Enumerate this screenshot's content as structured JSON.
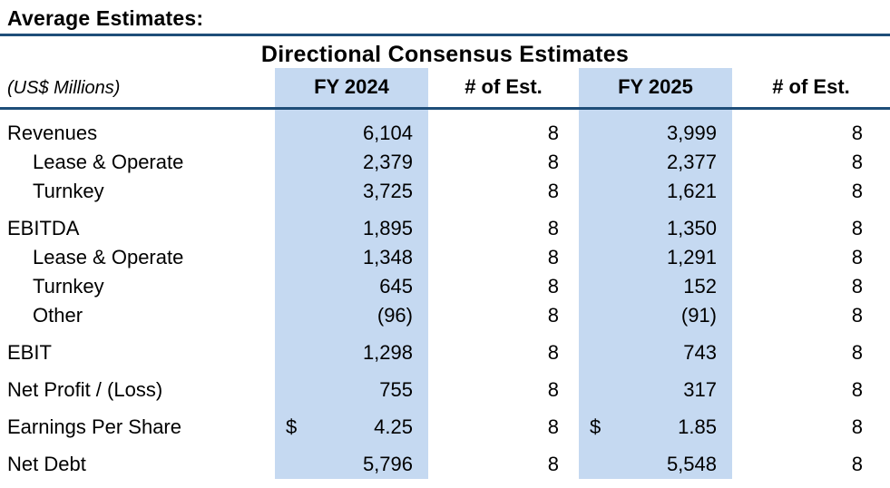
{
  "page": {
    "title": "Average Estimates:"
  },
  "table": {
    "title": "Directional Consensus Estimates",
    "unit_label": "(US$ Millions)",
    "columns": {
      "fy1": "FY 2024",
      "est1": "# of Est.",
      "fy2": "FY 2025",
      "est2": "# of Est."
    },
    "rows": [
      {
        "label": "Revenues",
        "indent": false,
        "gap": false,
        "cur1": "",
        "fy1": "6,104",
        "est1": "8",
        "cur2": "",
        "fy2": "3,999",
        "est2": "8"
      },
      {
        "label": "Lease & Operate",
        "indent": true,
        "gap": false,
        "cur1": "",
        "fy1": "2,379",
        "est1": "8",
        "cur2": "",
        "fy2": "2,377",
        "est2": "8"
      },
      {
        "label": "Turnkey",
        "indent": true,
        "gap": false,
        "cur1": "",
        "fy1": "3,725",
        "est1": "8",
        "cur2": "",
        "fy2": "1,621",
        "est2": "8"
      },
      {
        "label": "EBITDA",
        "indent": false,
        "gap": true,
        "cur1": "",
        "fy1": "1,895",
        "est1": "8",
        "cur2": "",
        "fy2": "1,350",
        "est2": "8"
      },
      {
        "label": "Lease & Operate",
        "indent": true,
        "gap": false,
        "cur1": "",
        "fy1": "1,348",
        "est1": "8",
        "cur2": "",
        "fy2": "1,291",
        "est2": "8"
      },
      {
        "label": "Turnkey",
        "indent": true,
        "gap": false,
        "cur1": "",
        "fy1": "645",
        "est1": "8",
        "cur2": "",
        "fy2": "152",
        "est2": "8"
      },
      {
        "label": "Other",
        "indent": true,
        "gap": false,
        "cur1": "",
        "fy1": "(96)",
        "est1": "8",
        "cur2": "",
        "fy2": "(91)",
        "est2": "8"
      },
      {
        "label": "EBIT",
        "indent": false,
        "gap": true,
        "cur1": "",
        "fy1": "1,298",
        "est1": "8",
        "cur2": "",
        "fy2": "743",
        "est2": "8"
      },
      {
        "label": "Net Profit / (Loss)",
        "indent": false,
        "gap": true,
        "cur1": "",
        "fy1": "755",
        "est1": "8",
        "cur2": "",
        "fy2": "317",
        "est2": "8"
      },
      {
        "label": "Earnings Per Share",
        "indent": false,
        "gap": true,
        "cur1": "$",
        "fy1": "4.25",
        "est1": "8",
        "cur2": "$",
        "fy2": "1.85",
        "est2": "8"
      },
      {
        "label": "Net Debt",
        "indent": false,
        "gap": true,
        "cur1": "",
        "fy1": "5,796",
        "est1": "8",
        "cur2": "",
        "fy2": "5,548",
        "est2": "8"
      }
    ]
  },
  "colors": {
    "band": "#c5d9f1",
    "rule": "#1f4e79",
    "text": "#000000",
    "background": "#ffffff"
  }
}
